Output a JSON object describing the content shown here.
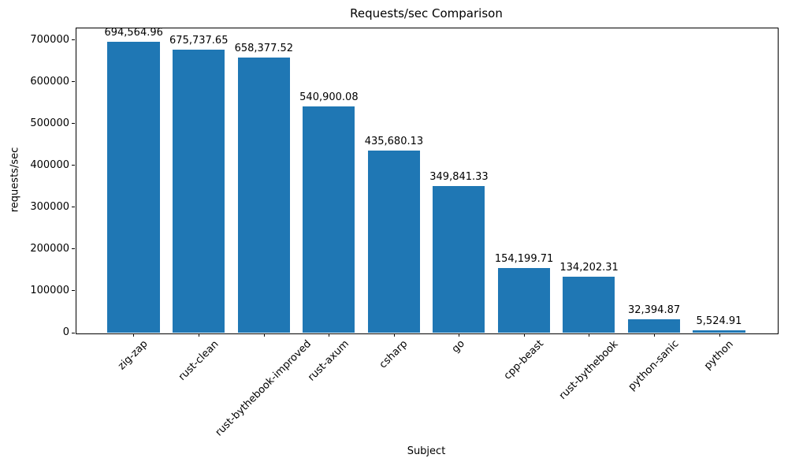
{
  "figure": {
    "background": "#ffffff",
    "text_color": "#000000"
  },
  "chart_data": {
    "type": "bar",
    "title": "Requests/sec Comparison",
    "xlabel": "Subject",
    "ylabel": "requests/sec",
    "categories": [
      "zig-zap",
      "rust-clean",
      "rust-bythebook-improved",
      "rust-axum",
      "csharp",
      "go",
      "cpp-beast",
      "rust-bythebook",
      "python-sanic",
      "python"
    ],
    "values": [
      694564.96,
      675737.65,
      658377.52,
      540900.08,
      435680.13,
      349841.33,
      154199.71,
      134202.31,
      32394.87,
      5524.91
    ],
    "value_labels": [
      "694,564.96",
      "675,737.65",
      "658,377.52",
      "540,900.08",
      "435,680.13",
      "349,841.33",
      "154,199.71",
      "134,202.31",
      "32,394.87",
      "5,524.91"
    ],
    "yticks": [
      0,
      100000,
      200000,
      300000,
      400000,
      500000,
      600000,
      700000
    ],
    "ylim": [
      0,
      729293
    ],
    "bar_color": "#1f77b4",
    "bar_width_fraction": 0.8,
    "grid": false,
    "legend": null,
    "x_tick_rotation_deg": 45
  }
}
